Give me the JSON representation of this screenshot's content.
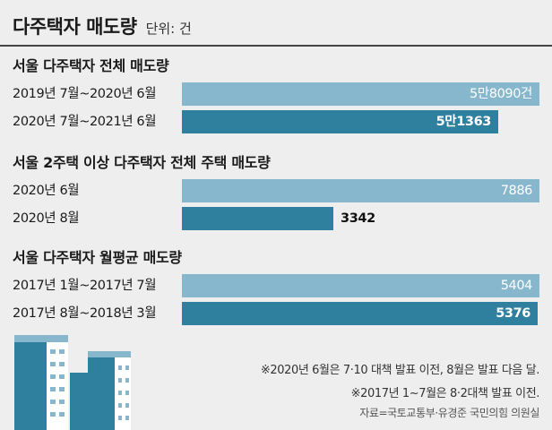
{
  "header": {
    "title": "다주택자 매도량",
    "unit": "단위: 건"
  },
  "chart_data": [
    {
      "type": "bar",
      "orientation": "horizontal",
      "title": "서울 다주택자 전체 매도량",
      "categories": [
        "2019년 7월~2020년 6월",
        "2020년 7월~2021년 6월"
      ],
      "values": [
        58090,
        51363
      ],
      "value_labels": [
        "5만8090건",
        "5만1363"
      ],
      "colors": [
        "#86b7cc",
        "#2f7f9e"
      ]
    },
    {
      "type": "bar",
      "orientation": "horizontal",
      "title": "서울 2주택 이상 다주택자 전체 주택 매도량",
      "categories": [
        "2020년 6월",
        "2020년 8월"
      ],
      "values": [
        7886,
        3342
      ],
      "value_labels": [
        "7886",
        "3342"
      ],
      "colors": [
        "#86b7cc",
        "#2f7f9e"
      ]
    },
    {
      "type": "bar",
      "orientation": "horizontal",
      "title": "서울 다주택자 월평균 매도량",
      "categories": [
        "2017년 1월~2017년 7월",
        "2017년 8월~2018년 3월"
      ],
      "values": [
        5404,
        5376
      ],
      "value_labels": [
        "5404",
        "5376"
      ],
      "colors": [
        "#86b7cc",
        "#2f7f9e"
      ]
    }
  ],
  "notes": [
    "※2020년 6월은 7·10 대책 발표 이전, 8월은 발표 다음 달.",
    "※2017년 1~7월은 8·2대책 발표 이전."
  ],
  "source": "자료=국토교통부·유경준 국민의힘 의원실",
  "decoration": {
    "icon": "apartment-buildings-icon",
    "colors": [
      "#2f7f9e",
      "#86b7cc",
      "#ffffff"
    ]
  }
}
